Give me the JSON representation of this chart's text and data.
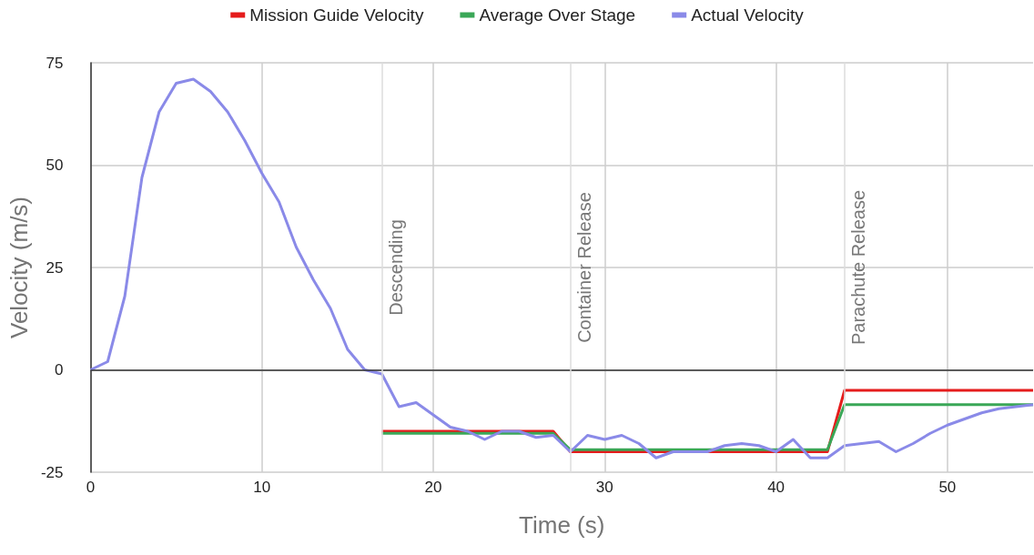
{
  "chart_data": {
    "type": "line",
    "xlabel": "Time (s)",
    "ylabel": "Velocity (m/s)",
    "xlim": [
      0,
      55
    ],
    "xticks": [
      0,
      10,
      20,
      30,
      40,
      50
    ],
    "ylim": [
      -25,
      75
    ],
    "yticks": [
      -25,
      0,
      25,
      50,
      75
    ],
    "grid": true,
    "legend": "top",
    "marker": "none",
    "line_style": "solid",
    "series": [
      {
        "name": "Mission Guide Velocity",
        "color": "#e51c1c",
        "x": [
          17,
          27,
          28,
          43,
          44,
          55
        ],
        "values": [
          -15,
          -15,
          -20,
          -20,
          -5,
          -5
        ]
      },
      {
        "name": "Average Over Stage",
        "color": "#3aa757",
        "x": [
          17,
          27,
          28,
          43,
          44,
          55
        ],
        "values": [
          -15.5,
          -15.5,
          -19.5,
          -19.5,
          -8.5,
          -8.5
        ]
      },
      {
        "name": "Actual Velocity",
        "color": "#8a8ae8",
        "x": [
          0,
          1,
          2,
          3,
          4,
          5,
          6,
          7,
          8,
          9,
          10,
          11,
          12,
          13,
          14,
          15,
          16,
          17,
          18,
          19,
          20,
          21,
          22,
          23,
          24,
          25,
          26,
          27,
          28,
          29,
          30,
          31,
          32,
          33,
          34,
          35,
          36,
          37,
          38,
          39,
          40,
          41,
          42,
          43,
          44,
          45,
          46,
          47,
          48,
          49,
          50,
          51,
          52,
          53,
          54,
          55
        ],
        "values": [
          0,
          2,
          18,
          47,
          63,
          70,
          71,
          68,
          63,
          56,
          48,
          41,
          30,
          22,
          15,
          5,
          0,
          -1,
          -9,
          -8,
          -11,
          -14,
          -15,
          -17,
          -15,
          -15,
          -16.5,
          -16,
          -20,
          -16,
          -17,
          -16,
          -18,
          -21.5,
          -20,
          -20,
          -20,
          -18.5,
          -18,
          -18.5,
          -20,
          -17,
          -21.5,
          -21.5,
          -18.5,
          -18,
          -17.5,
          -20,
          -18,
          -15.5,
          -13.5,
          -12,
          -10.5,
          -9.5,
          -9,
          -8.5
        ]
      }
    ],
    "ref_lines": [
      {
        "axis": "y",
        "value": 0,
        "color": "#333333"
      },
      {
        "axis": "x",
        "value": 17,
        "label": "Descending",
        "color": "#dddddd"
      },
      {
        "axis": "x",
        "value": 28,
        "label": "Container Release",
        "color": "#dddddd"
      },
      {
        "axis": "x",
        "value": 44,
        "label": "Parachute Release",
        "color": "#dddddd"
      }
    ]
  }
}
